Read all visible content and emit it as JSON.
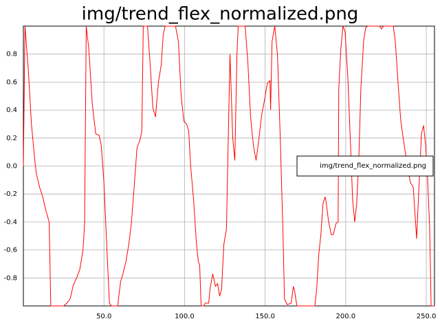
{
  "chart_data": {
    "type": "line",
    "title": "img/trend_flex_normalized.png",
    "x": [
      0,
      1,
      3,
      5,
      7,
      8,
      10,
      12,
      14,
      16,
      17,
      25,
      27,
      29,
      31,
      33,
      35,
      37,
      38,
      39,
      40.6,
      42.7,
      44.9,
      47,
      48.3,
      50,
      51.7,
      53.4,
      54.7,
      58.5,
      60.3,
      62,
      63.7,
      65.4,
      67,
      68.8,
      70.5,
      72.2,
      73.5,
      74.4,
      77,
      78.6,
      80.3,
      82,
      83.8,
      85.5,
      86.8,
      88,
      94.4,
      96.2,
      97.9,
      99.6,
      101.3,
      102.6,
      103.8,
      105.6,
      107.3,
      108.5,
      109.4,
      110.3,
      112,
      112.8,
      115,
      115.8,
      117.5,
      119.2,
      120.5,
      121.8,
      123,
      124.4,
      126,
      128.2,
      129.9,
      131.2,
      132.5,
      133.3,
      137.6,
      139.3,
      141,
      142.7,
      144.4,
      146.2,
      147.9,
      149.6,
      151.3,
      153,
      153.4,
      154.3,
      156,
      157.7,
      159.4,
      161.1,
      162,
      163.7,
      166.2,
      167.5,
      168.4,
      169.7,
      180.8,
      182,
      183.3,
      184.6,
      185.9,
      187.2,
      188,
      189.3,
      191,
      192.3,
      194,
      195.3,
      195.7,
      197,
      198.3,
      199.6,
      201.3,
      203,
      204.3,
      205.6,
      206.8,
      208.1,
      209.4,
      211.1,
      212.4,
      213.7,
      220.9,
      222.2,
      223.5,
      229.5,
      230.8,
      232.5,
      234.2,
      235.9,
      237.6,
      238.9,
      240.2,
      241.9,
      244,
      245.7,
      247,
      248.3,
      249.6,
      250.8,
      252.1,
      253,
      255.1
    ],
    "series": [
      {
        "name": "img/trend_flex_normalized.png",
        "color": "#ff0000",
        "values": [
          0,
          1,
          0.7,
          0.3,
          0.05,
          -0.05,
          -0.15,
          -0.22,
          -0.32,
          -0.4,
          -1,
          -1,
          -0.98,
          -0.95,
          -0.85,
          -0.8,
          -0.74,
          -0.6,
          -0.41,
          1,
          0.84,
          0.45,
          0.23,
          0.22,
          0.15,
          -0.12,
          -0.56,
          -0.98,
          -1,
          -1,
          -0.83,
          -0.76,
          -0.68,
          -0.56,
          -0.41,
          -0.14,
          0.13,
          0.18,
          0.25,
          1,
          1,
          0.74,
          0.42,
          0.35,
          0.6,
          0.72,
          0.94,
          1,
          1,
          0.89,
          0.5,
          0.32,
          0.3,
          0.25,
          0,
          -0.24,
          -0.54,
          -0.68,
          -0.71,
          -1,
          -1,
          -0.98,
          -0.98,
          -0.88,
          -0.77,
          -0.86,
          -0.84,
          -0.93,
          -0.88,
          -0.56,
          -0.45,
          0.8,
          0.2,
          0.04,
          0.79,
          1,
          1,
          0.74,
          0.35,
          0.15,
          0.04,
          0.2,
          0.37,
          0.47,
          0.59,
          0.61,
          0.4,
          0.89,
          1,
          0.79,
          0.2,
          -0.49,
          -0.95,
          -0.99,
          -0.98,
          -0.86,
          -0.9,
          -1,
          -1,
          -0.88,
          -0.63,
          -0.49,
          -0.27,
          -0.22,
          -0.27,
          -0.39,
          -0.49,
          -0.49,
          -0.41,
          -0.4,
          0.55,
          0.84,
          1,
          0.96,
          0.64,
          0.15,
          -0.24,
          -0.4,
          -0.27,
          0.03,
          0.55,
          0.89,
          0.99,
          1,
          1,
          0.98,
          1,
          1,
          0.89,
          0.59,
          0.32,
          0.18,
          0.05,
          -0.04,
          -0.12,
          -0.15,
          -0.52,
          -0.09,
          0.23,
          0.29,
          0.15,
          -0.09,
          -0.44,
          -1,
          -1
        ]
      }
    ],
    "xlim": [
      0,
      255.1
    ],
    "ylim": [
      -1,
      1
    ],
    "xticks": [
      {
        "value": 50,
        "label": "50.0"
      },
      {
        "value": 100,
        "label": "100.0"
      },
      {
        "value": 150,
        "label": "150.0"
      },
      {
        "value": 200,
        "label": "200.0"
      },
      {
        "value": 250,
        "label": "250.0"
      }
    ],
    "yticks": [
      -0.8,
      -0.6,
      -0.4,
      -0.2,
      {
        "value": 0,
        "label": "0.0"
      },
      0.2,
      0.4,
      0.6,
      0.8
    ],
    "grid": true,
    "legend": "right"
  }
}
